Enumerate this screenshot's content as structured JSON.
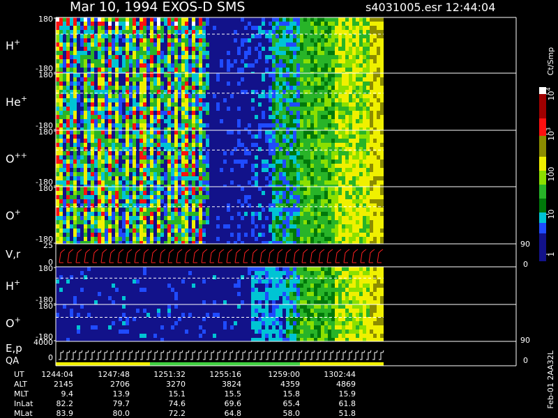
{
  "header": {
    "title": "Mar 10, 1994   EXOS-D SMS",
    "file": "s4031005.esr  12:44:04"
  },
  "panels": [
    {
      "ion": "H",
      "charge": "+",
      "yticks": [
        180,
        -180
      ]
    },
    {
      "ion": "He",
      "charge": "+",
      "yticks": [
        180,
        -180
      ]
    },
    {
      "ion": "O",
      "charge": "++",
      "yticks": [
        180,
        -180
      ]
    },
    {
      "ion": "O",
      "charge": "+",
      "yticks": [
        180,
        -180
      ]
    },
    {
      "ion": "H",
      "charge": "+",
      "yticks": [
        180,
        -180
      ]
    },
    {
      "ion": "O",
      "charge": "+",
      "yticks": [
        180,
        -180
      ]
    }
  ],
  "vr": {
    "label": "V,r",
    "yticks": [
      25,
      0
    ],
    "y2ticks": [
      90,
      0
    ]
  },
  "ep": {
    "label": "E,p",
    "qa": "QA",
    "yticks": [
      4000,
      0
    ],
    "y2ticks": [
      90,
      0
    ]
  },
  "colorbar": {
    "label": "Ct/Smp",
    "ticks": [
      {
        "value": 10000,
        "base": "10",
        "exp": "4"
      },
      {
        "value": 1000,
        "base": "10",
        "exp": "3"
      },
      100,
      10,
      1
    ]
  },
  "ephemeris": {
    "rows": [
      {
        "name": "UT",
        "values": [
          "1244:04",
          "1247:48",
          "1251:32",
          "1255:16",
          "1259:00",
          "1302:44"
        ]
      },
      {
        "name": "ALT",
        "values": [
          "2145",
          "2706",
          "3270",
          "3824",
          "4359",
          "4869"
        ]
      },
      {
        "name": "MLT",
        "values": [
          "9.4",
          "13.9",
          "15.1",
          "15.5",
          "15.8",
          "15.9"
        ]
      },
      {
        "name": "InLat",
        "values": [
          "82.2",
          "79.7",
          "74.6",
          "69.6",
          "65.4",
          "61.8"
        ]
      },
      {
        "name": "MLat",
        "values": [
          "83.9",
          "80.0",
          "72.2",
          "64.8",
          "58.0",
          "51.8"
        ]
      }
    ]
  },
  "footer": "Feb-01 2AA32L"
}
